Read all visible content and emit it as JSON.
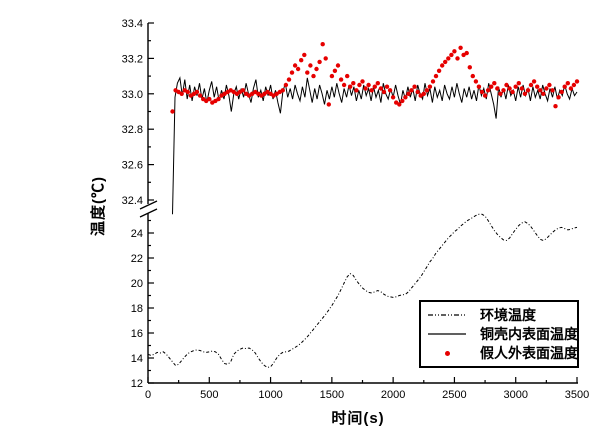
{
  "figure": {
    "background": "#ffffff",
    "axis_color": "#000000",
    "y_axis_title": "温度(℃)",
    "x_axis_title": "时间(s)",
    "x_tick_labels": [
      "0",
      "500",
      "1000",
      "1500",
      "2000",
      "2500",
      "3000",
      "3500"
    ],
    "y_tick_labels_top": [
      "33.4",
      "33.2",
      "33.0",
      "32.8",
      "32.6",
      "32.4"
    ],
    "y_tick_labels_bottom": [
      "24",
      "22",
      "20",
      "18",
      "16",
      "14",
      "12"
    ]
  },
  "legend": {
    "items": [
      {
        "label": "环境温度",
        "sample": "dash-dot-line",
        "color": "#000000"
      },
      {
        "label": "铜壳内表面温度",
        "sample": "solid-line",
        "color": "#000000"
      },
      {
        "label": "假人外表面温度",
        "sample": "red-dot",
        "color": "#e60000"
      }
    ]
  },
  "chart_data": {
    "type": "line",
    "title": "",
    "xlabel": "时间(s)",
    "ylabel": "温度(℃)",
    "xlim": [
      0,
      3500
    ],
    "x_major_tick": 500,
    "x_minor_tick": 250,
    "grid": false,
    "legend_position": "inside lower right",
    "broken_y_axis": {
      "top_segment_range": [
        32.4,
        33.4
      ],
      "top_major_tick": 0.2,
      "top_minor_tick": 0.1,
      "bottom_segment_range": [
        12,
        24
      ],
      "bottom_major_tick": 2,
      "bottom_minor_tick": 1
    },
    "series": [
      {
        "name": "环境温度",
        "style": "dash-dot-line",
        "color": "#000000",
        "x_start": 0,
        "x_step": 25,
        "values": [
          14.3,
          14.2,
          14.3,
          14.45,
          14.4,
          14.5,
          14.3,
          14.0,
          13.7,
          13.4,
          13.5,
          13.8,
          14.1,
          14.35,
          14.5,
          14.6,
          14.65,
          14.6,
          14.5,
          14.45,
          14.5,
          14.55,
          14.5,
          14.3,
          13.9,
          13.55,
          13.5,
          13.7,
          14.3,
          14.55,
          14.7,
          14.8,
          14.75,
          14.8,
          14.65,
          14.4,
          14.0,
          13.65,
          13.4,
          13.25,
          13.3,
          13.6,
          14.0,
          14.3,
          14.45,
          14.5,
          14.55,
          14.7,
          14.85,
          15.0,
          15.2,
          15.45,
          15.7,
          16.0,
          16.3,
          16.6,
          16.9,
          17.2,
          17.5,
          17.85,
          18.2,
          18.6,
          19.0,
          19.5,
          20.0,
          20.5,
          20.75,
          20.6,
          20.2,
          19.9,
          19.6,
          19.4,
          19.25,
          19.2,
          19.3,
          19.4,
          19.3,
          19.1,
          18.95,
          18.9,
          18.85,
          18.9,
          19.0,
          19.05,
          19.1,
          19.3,
          19.6,
          19.9,
          20.2,
          20.5,
          20.9,
          21.3,
          21.7,
          22.0,
          22.4,
          22.7,
          23.0,
          23.3,
          23.6,
          23.85,
          24.1,
          24.3,
          24.55,
          24.75,
          24.95,
          25.1,
          25.25,
          25.4,
          25.5,
          25.5,
          25.35,
          25.0,
          24.6,
          24.2,
          23.9,
          23.65,
          23.45,
          23.4,
          23.6,
          23.95,
          24.3,
          24.6,
          24.8,
          24.9,
          24.75,
          24.5,
          24.15,
          23.8,
          23.5,
          23.4,
          23.55,
          23.8,
          24.05,
          24.25,
          24.4,
          24.45,
          24.35,
          24.25,
          24.3,
          24.4,
          24.45
        ]
      },
      {
        "name": "铜壳内表面温度",
        "style": "solid-line",
        "color": "#000000",
        "x_start": 200,
        "x_step": 20,
        "values": [
          32.32,
          32.98,
          33.06,
          33.09,
          32.99,
          33.08,
          32.97,
          33.05,
          32.96,
          33.04,
          32.99,
          33.06,
          32.97,
          33.03,
          32.95,
          33.02,
          33.07,
          32.98,
          33.04,
          32.96,
          33.02,
          32.97,
          33.05,
          32.99,
          32.9,
          33.0,
          33.04,
          32.97,
          33.03,
          32.98,
          33.06,
          33.0,
          32.95,
          33.03,
          33.08,
          32.98,
          33.02,
          32.96,
          33.04,
          32.99,
          33.05,
          32.97,
          33.02,
          32.95,
          32.89,
          33.01,
          33.06,
          32.98,
          33.03,
          32.97,
          33.05,
          33.0,
          32.96,
          33.04,
          32.98,
          33.09,
          33.02,
          32.95,
          33.03,
          32.97,
          33.05,
          33.0,
          32.94,
          33.02,
          32.97,
          33.04,
          32.98,
          33.06,
          33.0,
          32.95,
          33.03,
          32.98,
          33.05,
          32.99,
          33.04,
          32.96,
          33.02,
          32.97,
          33.05,
          32.99,
          33.03,
          32.96,
          33.04,
          32.98,
          33.02,
          32.95,
          33.06,
          33.0,
          32.97,
          33.03,
          32.98,
          33.05,
          32.99,
          32.94,
          33.02,
          32.97,
          33.04,
          32.98,
          33.03,
          32.96,
          33.05,
          33.0,
          32.97,
          33.06,
          32.99,
          33.03,
          32.95,
          33.04,
          32.98,
          33.02,
          32.96,
          33.05,
          33.0,
          32.97,
          33.04,
          32.98,
          33.06,
          33.0,
          32.95,
          33.03,
          32.98,
          33.04,
          32.97,
          33.02,
          32.96,
          33.05,
          32.99,
          33.03,
          32.97,
          33.06,
          33.0,
          32.94,
          32.86,
          33.04,
          32.98,
          33.03,
          32.97,
          33.05,
          32.99,
          33.02,
          32.96,
          33.04,
          32.98,
          33.05,
          32.99,
          33.03,
          32.96,
          33.04,
          32.98,
          33.02,
          32.97,
          33.05,
          33.0,
          32.96,
          33.03,
          32.98,
          33.04,
          32.97,
          33.02,
          32.99,
          33.05,
          33.0,
          32.97,
          33.03,
          32.99,
          33.01
        ]
      },
      {
        "name": "假人外表面温度",
        "style": "scatter-dots",
        "color": "#e60000",
        "dot_radius_px": 2.2,
        "x_start": 200,
        "x_step": 25,
        "values": [
          32.9,
          33.02,
          33.01,
          33.0,
          33.02,
          33.01,
          32.99,
          33.0,
          33.01,
          32.99,
          32.97,
          32.96,
          32.97,
          32.95,
          32.96,
          32.97,
          32.99,
          33.0,
          33.01,
          33.02,
          33.01,
          33.0,
          33.01,
          33.02,
          33.0,
          32.99,
          33.0,
          33.01,
          33.0,
          32.99,
          33.0,
          33.01,
          33.0,
          32.99,
          33.0,
          33.01,
          33.02,
          33.05,
          33.08,
          33.12,
          33.16,
          33.14,
          33.19,
          33.22,
          33.12,
          33.16,
          33.1,
          33.14,
          33.18,
          33.28,
          33.2,
          32.94,
          33.1,
          33.13,
          33.16,
          33.08,
          33.05,
          33.1,
          33.04,
          33.06,
          33.02,
          33.05,
          33.07,
          33.03,
          33.05,
          33.02,
          33.04,
          33.06,
          33.03,
          33.01,
          33.04,
          33.02,
          32.98,
          32.95,
          32.94,
          32.96,
          32.98,
          33.0,
          33.02,
          33.04,
          33.01,
          32.99,
          33.0,
          33.02,
          33.04,
          33.07,
          33.1,
          33.13,
          33.16,
          33.18,
          33.2,
          33.22,
          33.24,
          33.2,
          33.26,
          33.22,
          33.23,
          33.15,
          33.1,
          33.07,
          33.04,
          33.01,
          32.99,
          33.02,
          33.04,
          33.06,
          33.03,
          33.0,
          33.02,
          33.05,
          33.03,
          33.01,
          33.04,
          33.06,
          33.03,
          33.0,
          33.02,
          33.05,
          33.07,
          33.04,
          33.02,
          33.0,
          33.03,
          33.05,
          33.02,
          32.93,
          32.98,
          33.01,
          33.04,
          33.06,
          33.03,
          33.05,
          33.07
        ]
      }
    ]
  }
}
